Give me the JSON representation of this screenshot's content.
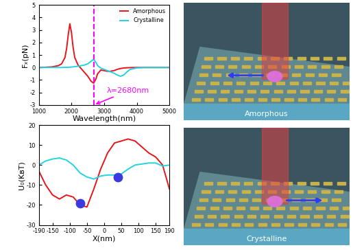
{
  "chart_data": [
    {
      "type": "line",
      "x_label": "Wavelength(nm)",
      "y_label": "Fₓ(pN)",
      "x": [
        1000,
        1200,
        1400,
        1600,
        1700,
        1800,
        1850,
        1900,
        1950,
        2000,
        2050,
        2100,
        2200,
        2300,
        2400,
        2500,
        2600,
        2680,
        2750,
        2800,
        2900,
        3000,
        3100,
        3200,
        3300,
        3400,
        3500,
        3600,
        3700,
        3800,
        4000,
        4200,
        4500,
        5000
      ],
      "series": [
        {
          "name": "Amorphous",
          "color": "#e8141c",
          "values": [
            0,
            0.02,
            0.05,
            0.15,
            0.3,
            0.8,
            1.5,
            2.6,
            3.5,
            2.8,
            1.6,
            0.8,
            0.2,
            -0.1,
            -0.4,
            -0.7,
            -1.1,
            -1.25,
            -0.9,
            -0.5,
            -0.2,
            -0.25,
            -0.3,
            -0.3,
            -0.25,
            -0.15,
            -0.08,
            -0.04,
            -0.02,
            -0.01,
            0,
            0,
            0,
            0
          ]
        },
        {
          "name": "Crystalline",
          "color": "#22d3e0",
          "values": [
            0,
            0,
            0,
            0,
            0,
            0.01,
            0.01,
            0.02,
            0.03,
            0.04,
            0.05,
            0.07,
            0.1,
            0.15,
            0.2,
            0.3,
            0.5,
            0.65,
            0.4,
            0.15,
            -0.05,
            -0.15,
            -0.25,
            -0.35,
            -0.45,
            -0.6,
            -0.7,
            -0.6,
            -0.35,
            -0.15,
            -0.03,
            0,
            0,
            0
          ]
        }
      ],
      "xlim": [
        1000,
        5000
      ],
      "xticks": [
        1000,
        2000,
        3000,
        4000,
        5000
      ],
      "ylim": [
        -3,
        5
      ],
      "yticks": [
        -3,
        -2,
        -1,
        0,
        1,
        2,
        3,
        4,
        5
      ],
      "vline": {
        "x": 2680,
        "color": "#ff00ff",
        "line_style": "dashed"
      },
      "annotation": {
        "text": "λ=2680nm",
        "x": 2680,
        "color": "#ff00ff"
      },
      "legend": "upper right"
    },
    {
      "type": "line",
      "x_label": "X(nm)",
      "y_label": "U₀(KʙT)",
      "x": [
        -190,
        -170,
        -150,
        -130,
        -110,
        -90,
        -70,
        -50,
        -30,
        -10,
        10,
        30,
        50,
        70,
        90,
        110,
        130,
        150,
        170,
        190
      ],
      "series": [
        {
          "name": "Amorphous",
          "color": "#e8141c",
          "values": [
            -3,
            -10,
            -15,
            -17,
            -15,
            -16,
            -20,
            -21,
            -12,
            -2,
            6,
            11,
            12,
            13,
            12,
            9,
            6,
            4,
            0,
            -12
          ]
        },
        {
          "name": "Crystalline",
          "color": "#22d3e0",
          "values": [
            0,
            2,
            3,
            3.5,
            2.5,
            0,
            -4,
            -6,
            -7,
            -5.5,
            -5,
            -5,
            -4.5,
            -2,
            0,
            0.5,
            1,
            1,
            -0.5,
            0
          ]
        }
      ],
      "particles": {
        "x": [
          -70,
          40
        ],
        "y": [
          -19,
          -6
        ],
        "color": "#3a3ae0"
      },
      "xlim": [
        -190,
        190
      ],
      "xticks": [
        -190,
        -150,
        -100,
        -50,
        0,
        50,
        100,
        150,
        190
      ],
      "ylim": [
        -30,
        20
      ],
      "yticks": [
        -30,
        -20,
        -10,
        0,
        10,
        20
      ]
    }
  ],
  "panels": [
    {
      "label": "Amorphous",
      "arrow": "left"
    },
    {
      "label": "Crystalline",
      "arrow": "right"
    }
  ]
}
